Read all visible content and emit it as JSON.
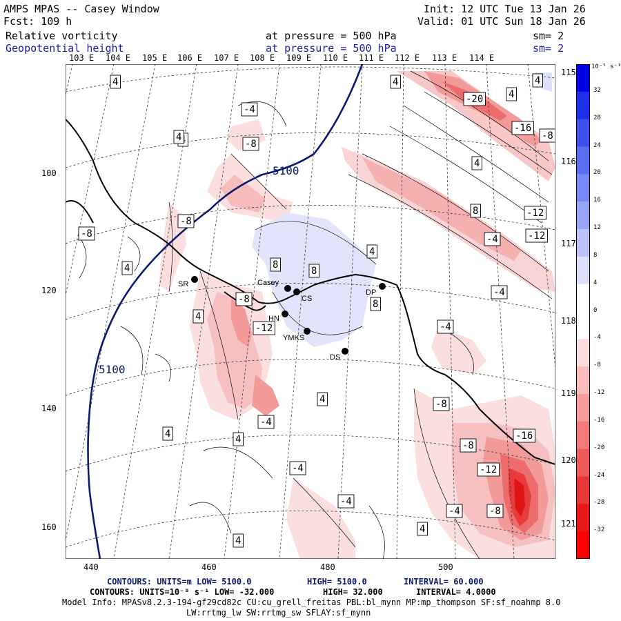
{
  "header": {
    "title": "AMPS MPAS -- Casey Window",
    "init": "Init: 12 UTC Tue 13 Jan 26",
    "fcst": "Fcst:  109 h",
    "valid": "Valid: 01 UTC Sun 18 Jan 26",
    "field1": {
      "name": "Relative vorticity",
      "level": "at pressure =  500 hPa",
      "sm": "sm= 2"
    },
    "field2": {
      "name": "Geopotential height",
      "level": "at pressure =  500 hPa",
      "sm": "sm= 2"
    }
  },
  "axes": {
    "top_lon_labels": [
      "103 E",
      "104 E",
      "105 E",
      "106 E",
      "107 E",
      "108 E",
      "109 E",
      "110 E",
      "111 E",
      "112 E",
      "113 E",
      "114 E"
    ],
    "right_lon_labels": [
      "115 E",
      "116 E",
      "117 E",
      "118 E",
      "119 E",
      "120 E",
      "121 E"
    ],
    "x_ticks": [
      "440",
      "460",
      "480",
      "500"
    ],
    "y_ticks": [
      "100",
      "120",
      "140",
      "160"
    ]
  },
  "stations": [
    {
      "name": "SR"
    },
    {
      "name": "Casey"
    },
    {
      "name": "CS"
    },
    {
      "name": "HN"
    },
    {
      "name": "YMKS"
    },
    {
      "name": "DS"
    },
    {
      "name": "DP"
    }
  ],
  "contour_labels": [
    "4",
    "4",
    "-4",
    "-8",
    "4",
    "5100",
    "4",
    "4",
    "-20",
    "-16",
    "-8",
    "4",
    "8",
    "-12",
    "-4",
    "-12",
    "-8",
    "-8",
    "4",
    "4",
    "8",
    "8",
    "8",
    "-8",
    "-4",
    "-12",
    "4",
    "-4",
    "-8",
    "-16",
    "-8",
    "-12",
    "-8",
    "-4",
    "-4",
    "4",
    "4",
    "4",
    "4",
    "-4",
    "-4",
    "4",
    "4",
    "5100"
  ],
  "colorbar": {
    "units": "10⁻⁵ s⁻¹",
    "labels": [
      "32",
      "28",
      "24",
      "20",
      "16",
      "12",
      "8",
      "4",
      "0",
      "-4",
      "-8",
      "-12",
      "-16",
      "-20",
      "-24",
      "-28",
      "-32"
    ],
    "colors": [
      "#0000e6",
      "#1f30ea",
      "#3d50ee",
      "#5a6ef2",
      "#7a88f4",
      "#9aa4f6",
      "#bcc2f8",
      "#dde0fa",
      "#ffffff",
      "#ffffff",
      "#fbdcdc",
      "#f8bcbc",
      "#f59c9c",
      "#f27a7a",
      "#ee5a5a",
      "#ea3838",
      "#e61818",
      "#ff0000"
    ]
  },
  "footer": {
    "line1_left": "CONTOURS:  UNITS=m  LOW=  5100.0",
    "line1_mid": "HIGH=  5100.0",
    "line1_right": "INTERVAL=   60.000",
    "line2_left": "CONTOURS:  UNITS=10⁻⁵ s⁻¹  LOW= -32.000",
    "line2_mid": "HIGH=  32.000",
    "line2_right": "INTERVAL=   4.0000",
    "line3": "Model Info: MPASv8.2.3-194-gf29cd82c CU:cu_grell_freitas PBL:bl_mynn MP:mp_thompson SF:sf_noahmp 8.0",
    "line4": "LW:rrtmg_lw SW:rrtmg_sw SFLAY:sf_mynn"
  },
  "colors": {
    "height_contour": "#0a1a6e",
    "vort_contour": "#000000",
    "coast": "#000000"
  }
}
